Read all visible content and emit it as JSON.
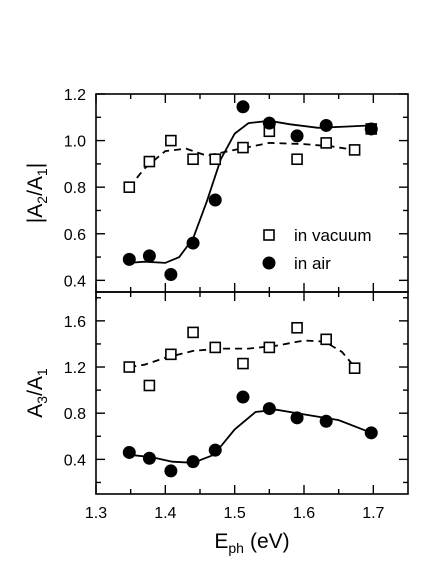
{
  "chart_data": [
    {
      "type": "scatter",
      "panel": "top",
      "xlabel": "E",
      "xlabel_sub": "ph",
      "xlabel_unit": "(eV)",
      "ylabel_parts": [
        "|A",
        "2",
        "/A",
        "1",
        "|"
      ],
      "xlim": [
        1.3,
        1.75
      ],
      "ylim": [
        0.35,
        1.2
      ],
      "x_ticks": [
        1.3,
        1.4,
        1.5,
        1.6,
        1.7
      ],
      "x_tick_labels": [
        "1.3",
        "1.4",
        "1.5",
        "1.6",
        "1.7"
      ],
      "y_ticks": [
        0.4,
        0.6,
        0.8,
        1.0,
        1.2
      ],
      "y_tick_labels": [
        "0.4",
        "0.6",
        "0.8",
        "1.0",
        "1.2"
      ],
      "grid": false,
      "legend_position": "bottom-right",
      "series": [
        {
          "name": "in vacuum",
          "marker": "open-square",
          "line_style": "dashed",
          "points": [
            {
              "x": 1.348,
              "y": 0.8
            },
            {
              "x": 1.377,
              "y": 0.91
            },
            {
              "x": 1.408,
              "y": 1.0
            },
            {
              "x": 1.44,
              "y": 0.92
            },
            {
              "x": 1.472,
              "y": 0.92
            },
            {
              "x": 1.512,
              "y": 0.97
            },
            {
              "x": 1.55,
              "y": 1.04
            },
            {
              "x": 1.59,
              "y": 0.92
            },
            {
              "x": 1.632,
              "y": 0.99
            },
            {
              "x": 1.673,
              "y": 0.96
            },
            {
              "x": 1.697,
              "y": 1.05
            }
          ],
          "fit": [
            {
              "x": 1.348,
              "y": 0.8
            },
            {
              "x": 1.37,
              "y": 0.88
            },
            {
              "x": 1.4,
              "y": 0.955
            },
            {
              "x": 1.43,
              "y": 0.965
            },
            {
              "x": 1.46,
              "y": 0.935
            },
            {
              "x": 1.5,
              "y": 0.96
            },
            {
              "x": 1.55,
              "y": 0.99
            },
            {
              "x": 1.6,
              "y": 0.985
            },
            {
              "x": 1.64,
              "y": 0.975
            },
            {
              "x": 1.673,
              "y": 0.96
            }
          ]
        },
        {
          "name": "in air",
          "marker": "filled-circle",
          "line_style": "solid",
          "points": [
            {
              "x": 1.348,
              "y": 0.49
            },
            {
              "x": 1.377,
              "y": 0.505
            },
            {
              "x": 1.408,
              "y": 0.425
            },
            {
              "x": 1.44,
              "y": 0.56
            },
            {
              "x": 1.472,
              "y": 0.745
            },
            {
              "x": 1.512,
              "y": 1.145
            },
            {
              "x": 1.55,
              "y": 1.075
            },
            {
              "x": 1.59,
              "y": 1.02
            },
            {
              "x": 1.632,
              "y": 1.065
            },
            {
              "x": 1.697,
              "y": 1.05
            }
          ],
          "fit": [
            {
              "x": 1.348,
              "y": 0.475
            },
            {
              "x": 1.37,
              "y": 0.48
            },
            {
              "x": 1.4,
              "y": 0.475
            },
            {
              "x": 1.42,
              "y": 0.5
            },
            {
              "x": 1.44,
              "y": 0.58
            },
            {
              "x": 1.46,
              "y": 0.74
            },
            {
              "x": 1.48,
              "y": 0.92
            },
            {
              "x": 1.5,
              "y": 1.03
            },
            {
              "x": 1.52,
              "y": 1.075
            },
            {
              "x": 1.55,
              "y": 1.085
            },
            {
              "x": 1.58,
              "y": 1.07
            },
            {
              "x": 1.62,
              "y": 1.055
            },
            {
              "x": 1.66,
              "y": 1.06
            },
            {
              "x": 1.697,
              "y": 1.065
            }
          ]
        }
      ]
    },
    {
      "type": "scatter",
      "panel": "bottom",
      "xlabel": "E",
      "xlabel_sub": "ph",
      "xlabel_unit": "(eV)",
      "ylabel_parts": [
        "A",
        "3",
        "/A",
        "1"
      ],
      "xlim": [
        1.3,
        1.75
      ],
      "ylim": [
        0.1,
        1.85
      ],
      "x_ticks": [
        1.3,
        1.4,
        1.5,
        1.6,
        1.7
      ],
      "x_tick_labels": [
        "1.3",
        "1.4",
        "1.5",
        "1.6",
        "1.7"
      ],
      "y_ticks": [
        0.4,
        0.8,
        1.2,
        1.6
      ],
      "y_tick_labels": [
        "0.4",
        "0.8",
        "1.2",
        "1.6"
      ],
      "grid": false,
      "series": [
        {
          "marker": "open-square",
          "line_style": "dashed",
          "points": [
            {
              "x": 1.348,
              "y": 1.2
            },
            {
              "x": 1.377,
              "y": 1.04
            },
            {
              "x": 1.408,
              "y": 1.31
            },
            {
              "x": 1.44,
              "y": 1.5
            },
            {
              "x": 1.472,
              "y": 1.37
            },
            {
              "x": 1.512,
              "y": 1.23
            },
            {
              "x": 1.55,
              "y": 1.37
            },
            {
              "x": 1.59,
              "y": 1.54
            },
            {
              "x": 1.632,
              "y": 1.44
            },
            {
              "x": 1.673,
              "y": 1.19
            }
          ],
          "fit": [
            {
              "x": 1.348,
              "y": 1.2
            },
            {
              "x": 1.37,
              "y": 1.22
            },
            {
              "x": 1.4,
              "y": 1.28
            },
            {
              "x": 1.44,
              "y": 1.34
            },
            {
              "x": 1.48,
              "y": 1.36
            },
            {
              "x": 1.52,
              "y": 1.36
            },
            {
              "x": 1.56,
              "y": 1.385
            },
            {
              "x": 1.6,
              "y": 1.43
            },
            {
              "x": 1.63,
              "y": 1.42
            },
            {
              "x": 1.655,
              "y": 1.33
            },
            {
              "x": 1.673,
              "y": 1.2
            }
          ]
        },
        {
          "marker": "filled-circle",
          "line_style": "solid",
          "points": [
            {
              "x": 1.348,
              "y": 0.46
            },
            {
              "x": 1.377,
              "y": 0.41
            },
            {
              "x": 1.408,
              "y": 0.3
            },
            {
              "x": 1.44,
              "y": 0.38
            },
            {
              "x": 1.472,
              "y": 0.48
            },
            {
              "x": 1.512,
              "y": 0.94
            },
            {
              "x": 1.55,
              "y": 0.84
            },
            {
              "x": 1.59,
              "y": 0.76
            },
            {
              "x": 1.632,
              "y": 0.73
            },
            {
              "x": 1.697,
              "y": 0.63
            }
          ],
          "fit": [
            {
              "x": 1.348,
              "y": 0.44
            },
            {
              "x": 1.38,
              "y": 0.42
            },
            {
              "x": 1.41,
              "y": 0.38
            },
            {
              "x": 1.44,
              "y": 0.37
            },
            {
              "x": 1.47,
              "y": 0.44
            },
            {
              "x": 1.5,
              "y": 0.66
            },
            {
              "x": 1.53,
              "y": 0.81
            },
            {
              "x": 1.56,
              "y": 0.83
            },
            {
              "x": 1.6,
              "y": 0.79
            },
            {
              "x": 1.65,
              "y": 0.74
            },
            {
              "x": 1.697,
              "y": 0.63
            }
          ]
        }
      ]
    }
  ]
}
